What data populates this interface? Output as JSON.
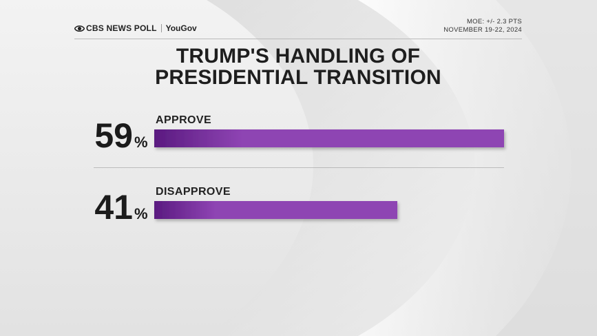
{
  "header": {
    "brand": "CBS NEWS POLL",
    "partner": "YouGov",
    "moe": "MOE: +/- 2.3 PTS",
    "dates": "NOVEMBER 19-22, 2024"
  },
  "colors": {
    "bar": "#8e44b3",
    "bar_dark": "#5a1a80",
    "text": "#1b1b1b"
  },
  "chart_data": {
    "type": "bar",
    "title": "TRUMP'S HANDLING OF PRESIDENTIAL TRANSITION",
    "categories": [
      "APPROVE",
      "DISAPPROVE"
    ],
    "values": [
      59,
      41
    ],
    "unit": "%",
    "xlim": [
      0,
      59
    ],
    "orientation": "horizontal",
    "grid": false
  }
}
